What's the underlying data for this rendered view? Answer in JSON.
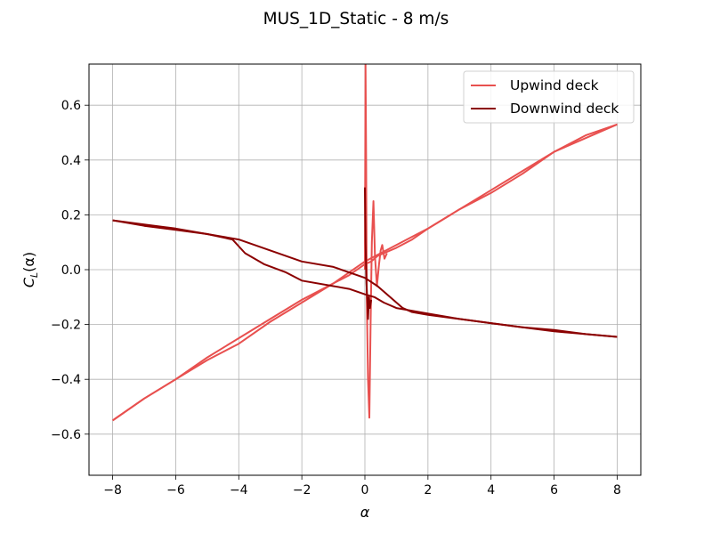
{
  "chart_data": {
    "type": "line",
    "title": "MUS_1D_Static - 8 m/s",
    "xlabel": "α",
    "ylabel_main": "C",
    "ylabel_sub": "L",
    "ylabel_tail": "(α)",
    "xlim": [
      -8.75,
      8.75
    ],
    "ylim": [
      -0.75,
      0.75
    ],
    "xticks": [
      -8,
      -6,
      -4,
      -2,
      0,
      2,
      4,
      6,
      8
    ],
    "xtick_labels": [
      "−8",
      "−6",
      "−4",
      "−2",
      "0",
      "2",
      "4",
      "6",
      "8"
    ],
    "yticks": [
      -0.6,
      -0.4,
      -0.2,
      0.0,
      0.2,
      0.4,
      0.6
    ],
    "ytick_labels": [
      "−0.6",
      "−0.4",
      "−0.2",
      "0.0",
      "0.2",
      "0.4",
      "0.6"
    ],
    "grid": true,
    "legend_position": "upper-right",
    "series": [
      {
        "name": "Upwind deck",
        "color": "#e8504f",
        "paths": [
          [
            [
              -8.0,
              -0.55
            ],
            [
              -7.0,
              -0.47
            ],
            [
              -6.0,
              -0.4
            ],
            [
              -5.0,
              -0.32
            ],
            [
              -4.0,
              -0.25
            ],
            [
              -3.0,
              -0.18
            ],
            [
              -2.0,
              -0.11
            ],
            [
              -1.0,
              -0.05
            ],
            [
              -0.5,
              -0.02
            ],
            [
              0.0,
              0.02
            ],
            [
              0.2,
              0.03
            ],
            [
              0.4,
              0.05
            ],
            [
              0.6,
              0.06
            ],
            [
              1.0,
              0.08
            ],
            [
              1.5,
              0.11
            ],
            [
              2.0,
              0.15
            ],
            [
              3.0,
              0.22
            ],
            [
              4.0,
              0.28
            ],
            [
              5.0,
              0.35
            ],
            [
              6.0,
              0.43
            ],
            [
              7.0,
              0.48
            ],
            [
              8.0,
              0.53
            ]
          ],
          [
            [
              8.0,
              0.53
            ],
            [
              7.0,
              0.49
            ],
            [
              6.0,
              0.43
            ],
            [
              5.0,
              0.36
            ],
            [
              4.0,
              0.29
            ],
            [
              3.0,
              0.22
            ],
            [
              2.0,
              0.15
            ],
            [
              1.5,
              0.12
            ],
            [
              1.0,
              0.09
            ],
            [
              0.5,
              0.06
            ],
            [
              0.0,
              0.03
            ],
            [
              -0.5,
              -0.01
            ],
            [
              -1.0,
              -0.05
            ],
            [
              -2.0,
              -0.12
            ],
            [
              -3.0,
              -0.19
            ],
            [
              -4.0,
              -0.27
            ],
            [
              -5.0,
              -0.33
            ],
            [
              -6.0,
              -0.4
            ],
            [
              -7.0,
              -0.47
            ],
            [
              -8.0,
              -0.55
            ]
          ],
          [
            [
              0.0,
              0.0
            ],
            [
              0.02,
              0.75
            ],
            [
              0.04,
              0.4
            ],
            [
              0.06,
              -0.1
            ],
            [
              0.1,
              -0.4
            ],
            [
              0.14,
              -0.54
            ],
            [
              0.18,
              -0.2
            ],
            [
              0.22,
              0.1
            ],
            [
              0.27,
              0.25
            ],
            [
              0.32,
              0.05
            ],
            [
              0.38,
              -0.06
            ],
            [
              0.45,
              0.02
            ],
            [
              0.5,
              0.07
            ],
            [
              0.55,
              0.09
            ],
            [
              0.62,
              0.04
            ],
            [
              0.7,
              0.06
            ]
          ]
        ]
      },
      {
        "name": "Downwind deck",
        "color": "#8b0000",
        "paths": [
          [
            [
              -8.0,
              0.18
            ],
            [
              -7.0,
              0.16
            ],
            [
              -6.0,
              0.145
            ],
            [
              -5.0,
              0.13
            ],
            [
              -4.2,
              0.11
            ],
            [
              -3.8,
              0.06
            ],
            [
              -3.2,
              0.02
            ],
            [
              -2.5,
              -0.01
            ],
            [
              -2.0,
              -0.04
            ],
            [
              -1.0,
              -0.06
            ],
            [
              -0.5,
              -0.07
            ],
            [
              0.0,
              -0.09
            ],
            [
              0.3,
              -0.1
            ],
            [
              0.6,
              -0.12
            ],
            [
              1.0,
              -0.14
            ],
            [
              2.0,
              -0.16
            ],
            [
              3.0,
              -0.18
            ],
            [
              4.0,
              -0.195
            ],
            [
              5.0,
              -0.21
            ],
            [
              6.0,
              -0.225
            ],
            [
              7.0,
              -0.235
            ],
            [
              8.0,
              -0.245
            ]
          ],
          [
            [
              8.0,
              -0.245
            ],
            [
              7.0,
              -0.235
            ],
            [
              6.0,
              -0.22
            ],
            [
              5.0,
              -0.21
            ],
            [
              4.0,
              -0.195
            ],
            [
              3.0,
              -0.18
            ],
            [
              2.0,
              -0.165
            ],
            [
              1.5,
              -0.155
            ],
            [
              1.2,
              -0.14
            ],
            [
              0.8,
              -0.1
            ],
            [
              0.4,
              -0.06
            ],
            [
              0.0,
              -0.03
            ],
            [
              -0.5,
              -0.01
            ],
            [
              -1.0,
              0.01
            ],
            [
              -2.0,
              0.03
            ],
            [
              -3.0,
              0.07
            ],
            [
              -4.0,
              0.11
            ],
            [
              -5.0,
              0.13
            ],
            [
              -6.0,
              0.15
            ],
            [
              -7.0,
              0.165
            ],
            [
              -8.0,
              0.18
            ]
          ],
          [
            [
              0.0,
              0.3
            ],
            [
              0.02,
              0.1
            ],
            [
              0.05,
              -0.05
            ],
            [
              0.08,
              -0.12
            ],
            [
              0.1,
              -0.18
            ],
            [
              0.13,
              -0.1
            ],
            [
              0.16,
              -0.14
            ],
            [
              0.2,
              -0.11
            ]
          ]
        ]
      }
    ]
  }
}
